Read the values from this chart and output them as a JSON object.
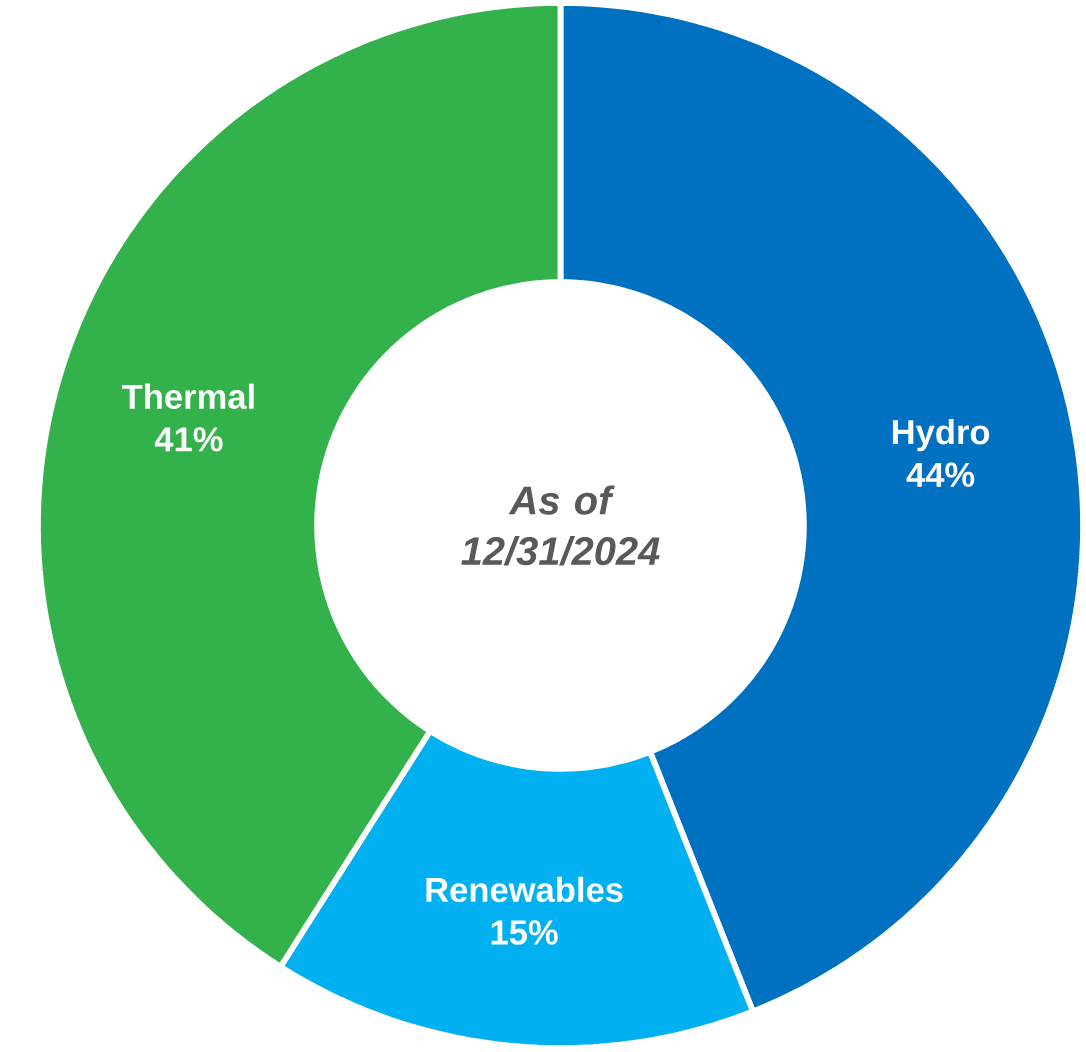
{
  "chart_data": {
    "type": "donut",
    "categories": [
      "Hydro",
      "Renewables",
      "Thermal"
    ],
    "values": [
      44,
      15,
      41
    ],
    "value_labels": [
      "44%",
      "15%",
      "41%"
    ],
    "colors": [
      "#0070c0",
      "#00b0f0",
      "#33b14a"
    ],
    "annotations": [
      "As of 12/31/2024"
    ]
  }
}
